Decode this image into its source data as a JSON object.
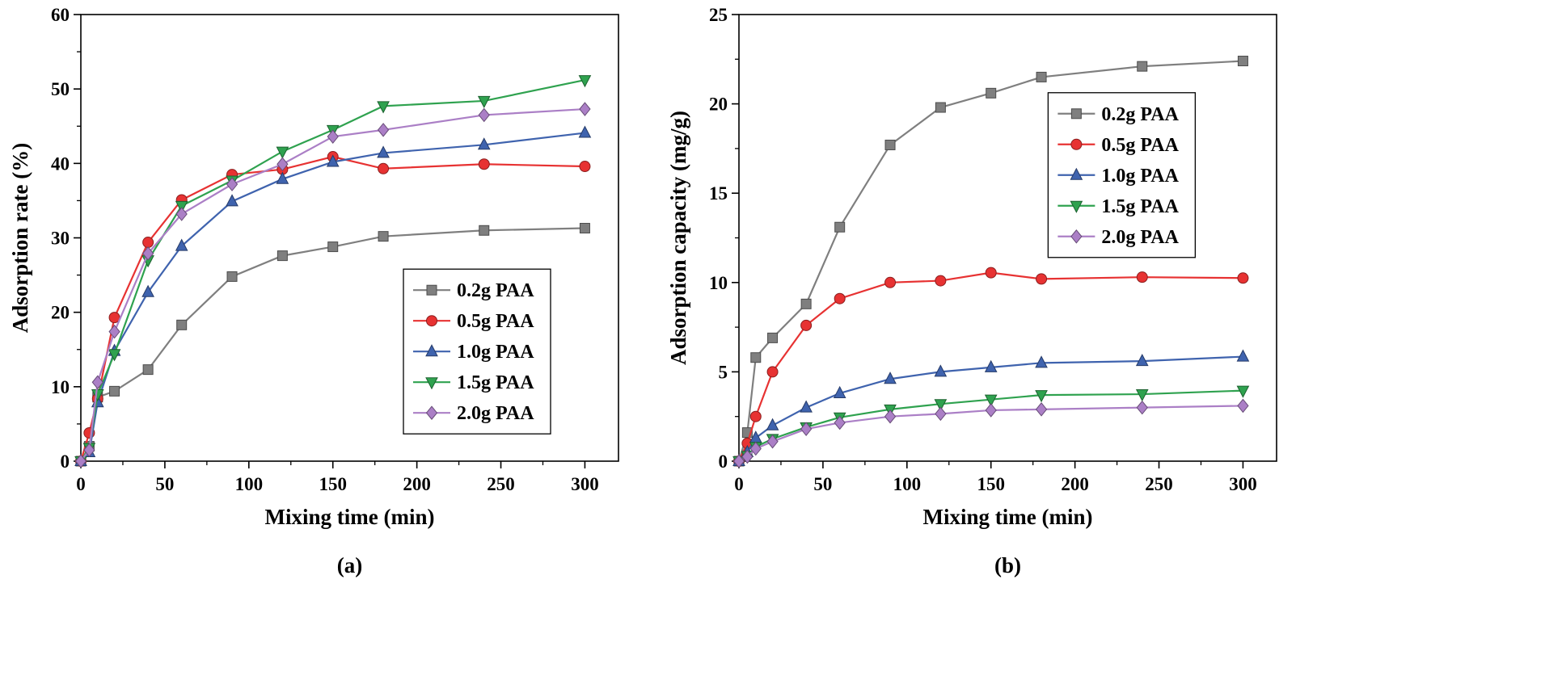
{
  "figure": {
    "background": "#ffffff",
    "caption_a": "(a)",
    "caption_b": "(b)"
  },
  "chart_data": [
    {
      "id": "a",
      "type": "line",
      "caption": "(a)",
      "title": "",
      "xlabel": "Mixing time (min)",
      "ylabel": "Adsorption rate (%)",
      "xlim": [
        0,
        320
      ],
      "ylim": [
        0,
        60
      ],
      "x_ticks": [
        0,
        50,
        100,
        150,
        200,
        250,
        300
      ],
      "y_ticks": [
        0,
        10,
        20,
        30,
        40,
        50,
        60
      ],
      "x_minor_step": 25,
      "y_minor_step": 5,
      "grid": false,
      "legend_position": "inside lower-right",
      "legend_frac": {
        "x": 0.6,
        "y": 0.57
      },
      "x": [
        0,
        5,
        10,
        20,
        40,
        60,
        90,
        120,
        150,
        180,
        240,
        300
      ],
      "series": [
        {
          "name": "0.2g PAA",
          "color": "#7f7f7f",
          "marker": "square",
          "values": [
            0,
            2.0,
            8.6,
            9.4,
            12.3,
            18.3,
            24.8,
            27.6,
            28.8,
            30.2,
            31.0,
            31.3
          ]
        },
        {
          "name": "0.5g PAA",
          "color": "#e73232",
          "marker": "circle",
          "values": [
            0,
            3.8,
            8.4,
            19.3,
            29.4,
            35.1,
            38.5,
            39.2,
            40.9,
            39.3,
            39.9,
            39.6
          ]
        },
        {
          "name": "1.0g PAA",
          "color": "#3f63ae",
          "marker": "triangle-up",
          "values": [
            0,
            1.2,
            7.9,
            14.8,
            22.7,
            28.9,
            34.9,
            37.9,
            40.2,
            41.4,
            42.5,
            44.1
          ]
        },
        {
          "name": "1.5g PAA",
          "color": "#2fa24f",
          "marker": "triangle-down",
          "values": [
            0,
            1.8,
            9.0,
            14.4,
            27.0,
            34.3,
            37.7,
            41.6,
            44.5,
            47.7,
            48.4,
            51.2
          ]
        },
        {
          "name": "2.0g PAA",
          "color": "#ab7fc6",
          "marker": "diamond",
          "values": [
            0,
            1.5,
            10.6,
            17.4,
            27.9,
            33.2,
            37.2,
            39.9,
            43.6,
            44.5,
            46.5,
            47.3
          ]
        }
      ]
    },
    {
      "id": "b",
      "type": "line",
      "caption": "(b)",
      "title": "",
      "xlabel": "Mixing time (min)",
      "ylabel": "Adsorption capacity (mg/g)",
      "xlim": [
        0,
        320
      ],
      "ylim": [
        0,
        25
      ],
      "x_ticks": [
        0,
        50,
        100,
        150,
        200,
        250,
        300
      ],
      "y_ticks": [
        0,
        5,
        10,
        15,
        20,
        25
      ],
      "x_minor_step": 25,
      "y_minor_step": 2.5,
      "grid": false,
      "legend_position": "inside upper-right",
      "legend_frac": {
        "x": 0.575,
        "y": 0.175
      },
      "x": [
        0,
        5,
        10,
        20,
        40,
        60,
        90,
        120,
        150,
        180,
        240,
        300
      ],
      "series": [
        {
          "name": "0.2g PAA",
          "color": "#7f7f7f",
          "marker": "square",
          "values": [
            0,
            1.6,
            5.8,
            6.9,
            8.8,
            13.1,
            17.7,
            19.8,
            20.6,
            21.5,
            22.1,
            22.4
          ]
        },
        {
          "name": "0.5g PAA",
          "color": "#e73232",
          "marker": "circle",
          "values": [
            0,
            1.0,
            2.5,
            5.0,
            7.6,
            9.1,
            10.0,
            10.1,
            10.55,
            10.2,
            10.3,
            10.25
          ]
        },
        {
          "name": "1.0g PAA",
          "color": "#3f63ae",
          "marker": "triangle-up",
          "values": [
            0,
            0.5,
            1.3,
            2.0,
            3.0,
            3.8,
            4.6,
            5.0,
            5.25,
            5.5,
            5.6,
            5.85
          ]
        },
        {
          "name": "1.5g PAA",
          "color": "#2fa24f",
          "marker": "triangle-down",
          "values": [
            0,
            0.3,
            0.8,
            1.25,
            1.9,
            2.45,
            2.9,
            3.2,
            3.45,
            3.7,
            3.75,
            3.95
          ]
        },
        {
          "name": "2.0g PAA",
          "color": "#ab7fc6",
          "marker": "diamond",
          "values": [
            0,
            0.25,
            0.7,
            1.1,
            1.8,
            2.15,
            2.5,
            2.65,
            2.85,
            2.9,
            3.0,
            3.1
          ]
        }
      ]
    }
  ]
}
